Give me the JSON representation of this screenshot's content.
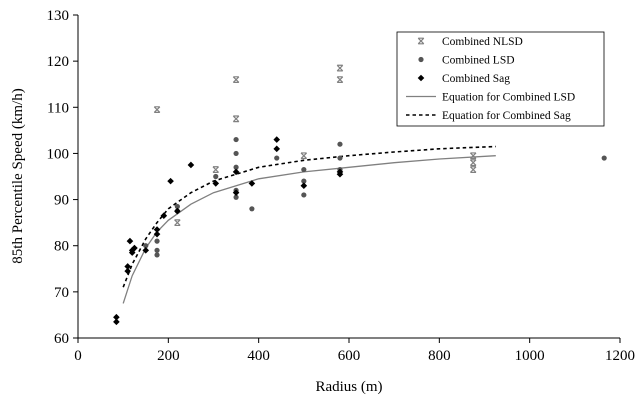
{
  "chart_data": {
    "type": "scatter",
    "title": "",
    "xlabel": "Radius (m)",
    "ylabel": "85th Percentile Speed (km/h)",
    "xlim": [
      0,
      1200
    ],
    "ylim": [
      60,
      130
    ],
    "xticks": [
      0,
      200,
      400,
      600,
      800,
      1000,
      1200
    ],
    "yticks": [
      60,
      70,
      80,
      90,
      100,
      110,
      120,
      130
    ],
    "grid": false,
    "legend_position": "top-right",
    "series": [
      {
        "name": "Combined NLSD",
        "kind": "points",
        "marker": "asterisk",
        "color": "#808080",
        "points": [
          [
            175,
            109.5
          ],
          [
            350,
            116
          ],
          [
            350,
            107.5
          ],
          [
            500,
            99.5
          ],
          [
            580,
            118.5
          ],
          [
            580,
            116
          ],
          [
            875,
            99.5
          ],
          [
            875,
            98
          ],
          [
            875,
            96.5
          ],
          [
            305,
            96.5
          ],
          [
            220,
            85
          ]
        ]
      },
      {
        "name": "Combined LSD",
        "kind": "points",
        "marker": "circle",
        "color": "#555555",
        "points": [
          [
            350,
            103
          ],
          [
            350,
            100
          ],
          [
            350,
            97
          ],
          [
            350,
            92
          ],
          [
            350,
            90.5
          ],
          [
            440,
            99
          ],
          [
            500,
            96.5
          ],
          [
            500,
            94
          ],
          [
            500,
            91
          ],
          [
            385,
            88
          ],
          [
            580,
            102
          ],
          [
            580,
            99
          ],
          [
            580,
            96.5
          ],
          [
            175,
            81
          ],
          [
            175,
            79
          ],
          [
            175,
            78
          ],
          [
            150,
            80
          ],
          [
            220,
            87.5
          ],
          [
            220,
            88.5
          ],
          [
            305,
            95
          ],
          [
            1165,
            99
          ]
        ]
      },
      {
        "name": "Combined Sag",
        "kind": "points",
        "marker": "diamond",
        "color": "#000000",
        "points": [
          [
            85,
            64.5
          ],
          [
            85,
            63.5
          ],
          [
            110,
            75.5
          ],
          [
            110,
            74.5
          ],
          [
            115,
            81
          ],
          [
            120,
            79
          ],
          [
            120,
            78.5
          ],
          [
            125,
            79.5
          ],
          [
            150,
            79
          ],
          [
            175,
            82.5
          ],
          [
            175,
            83.5
          ],
          [
            190,
            86.5
          ],
          [
            205,
            94
          ],
          [
            220,
            87.5
          ],
          [
            250,
            97.5
          ],
          [
            305,
            93.5
          ],
          [
            350,
            96
          ],
          [
            350,
            91.5
          ],
          [
            385,
            93.5
          ],
          [
            440,
            103
          ],
          [
            440,
            101
          ],
          [
            500,
            93
          ],
          [
            580,
            96
          ],
          [
            580,
            95.5
          ]
        ]
      },
      {
        "name": "Equation for Combined LSD",
        "kind": "curve",
        "style": "solid",
        "color": "#808080",
        "points": [
          [
            100,
            67.5
          ],
          [
            120,
            73.5
          ],
          [
            150,
            79.5
          ],
          [
            175,
            83
          ],
          [
            200,
            85.5
          ],
          [
            250,
            89
          ],
          [
            300,
            91.5
          ],
          [
            350,
            93
          ],
          [
            400,
            94.5
          ],
          [
            500,
            96
          ],
          [
            600,
            97
          ],
          [
            700,
            98
          ],
          [
            800,
            98.8
          ],
          [
            925,
            99.5
          ]
        ]
      },
      {
        "name": "Equation for Combined Sag",
        "kind": "curve",
        "style": "dashed",
        "color": "#000000",
        "points": [
          [
            100,
            71
          ],
          [
            120,
            76
          ],
          [
            150,
            81.5
          ],
          [
            175,
            85
          ],
          [
            200,
            88
          ],
          [
            250,
            91.5
          ],
          [
            300,
            94
          ],
          [
            350,
            95.5
          ],
          [
            400,
            97
          ],
          [
            500,
            98.5
          ],
          [
            600,
            99.5
          ],
          [
            700,
            100.3
          ],
          [
            800,
            101
          ],
          [
            925,
            101.5
          ]
        ]
      }
    ]
  }
}
